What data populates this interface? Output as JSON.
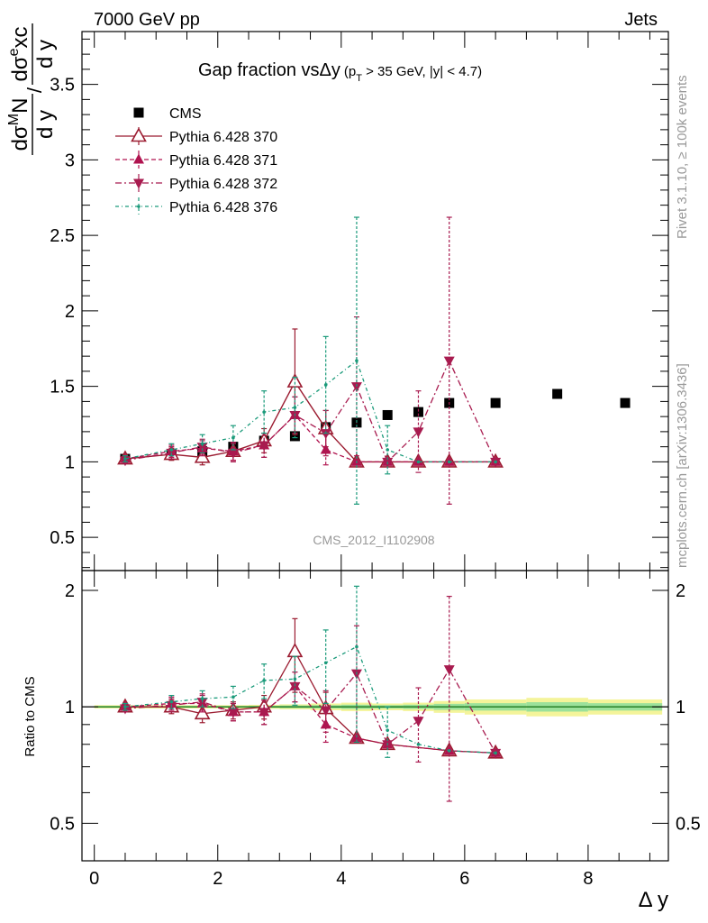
{
  "header": {
    "left": "7000 GeV pp",
    "right": "Jets"
  },
  "side_text": {
    "rivet": "Rivet 3.1.10, ≥ 100k events",
    "mcplots": "mcplots.cern.ch [arXiv:1306.3436]"
  },
  "watermark": "CMS_2012_I1102908",
  "colors": {
    "cms": "#000000",
    "p370": "#9b1b30",
    "p371": "#b0134f",
    "p372": "#a81b4f",
    "p376": "#1a9a7a",
    "band_outer": "#f4f49a",
    "band_inner": "#9be19b",
    "ref_line": "#1a8f1a"
  },
  "chart_data": [
    {
      "type": "scatter",
      "panel": "main",
      "title": "Gap fraction vsΔy",
      "title_cut": "(p_T > 35 GeV, |y| < 4.7)",
      "xlabel": "Δ y",
      "ylabel": "dσ^MN/dy / dσ^excl/dy",
      "xlim": [
        -0.2,
        9.3
      ],
      "ylim": [
        0.28,
        3.85
      ],
      "yticks": [
        0.5,
        1,
        1.5,
        2,
        2.5,
        3,
        3.5
      ],
      "ytick_labels": [
        "0.5",
        "1",
        "1.5",
        "2",
        "2.5",
        "3",
        "3.5"
      ],
      "xticks": [
        0,
        2,
        4,
        6,
        8
      ],
      "legend_placement": "top-left",
      "series": [
        {
          "name": "CMS",
          "style": "data",
          "x": [
            0.5,
            1.25,
            1.75,
            2.25,
            2.75,
            3.25,
            3.75,
            4.25,
            4.75,
            5.25,
            5.75,
            6.5,
            7.5,
            8.6
          ],
          "y": [
            1.02,
            1.05,
            1.07,
            1.1,
            1.14,
            1.17,
            1.23,
            1.26,
            1.31,
            1.33,
            1.39,
            1.39,
            1.45,
            1.39
          ],
          "yerr": [
            0.01,
            0.01,
            0.01,
            0.01,
            0.01,
            0.01,
            0.02,
            0.03,
            0.02,
            0.02,
            0.02,
            0.02,
            0.02,
            0.02
          ]
        },
        {
          "name": "Pythia 6.428 370",
          "style": "solid-open-triangle",
          "x": [
            0.5,
            1.25,
            1.75,
            2.25,
            2.75,
            3.25,
            3.75,
            4.25,
            4.75,
            5.25,
            5.75,
            6.5
          ],
          "y": [
            1.02,
            1.05,
            1.03,
            1.07,
            1.14,
            1.53,
            1.22,
            1.0,
            1.0,
            1.0,
            1.0,
            1.0
          ],
          "yerr": [
            0.02,
            0.04,
            0.05,
            0.06,
            0.08,
            0.35,
            0.12,
            0.0,
            0.0,
            0.0,
            0.0,
            0.0
          ]
        },
        {
          "name": "Pythia 6.428 371",
          "style": "dashed-triangle-up",
          "x": [
            0.5,
            1.25,
            1.75,
            2.25,
            2.75,
            3.25,
            3.75,
            4.25,
            4.75,
            5.25,
            5.75,
            6.5
          ],
          "y": [
            1.02,
            1.07,
            1.09,
            1.07,
            1.11,
            1.31,
            1.08,
            1.0,
            1.0,
            1.0,
            1.0,
            1.0
          ],
          "yerr": [
            0.02,
            0.04,
            0.05,
            0.06,
            0.08,
            0.12,
            0.1,
            0.0,
            0.0,
            0.0,
            0.0,
            0.0
          ]
        },
        {
          "name": "Pythia 6.428 372",
          "style": "dashdot-triangle-down",
          "x": [
            0.5,
            1.25,
            1.75,
            2.25,
            2.75,
            3.25,
            3.75,
            4.25,
            4.75,
            5.25,
            5.75,
            6.5
          ],
          "y": [
            1.01,
            1.06,
            1.1,
            1.06,
            1.11,
            1.31,
            1.19,
            1.5,
            1.0,
            1.2,
            1.67,
            1.0
          ],
          "yerr": [
            0.02,
            0.04,
            0.05,
            0.06,
            0.08,
            0.12,
            0.15,
            0.46,
            0.0,
            0.27,
            0.95,
            0.0
          ]
        },
        {
          "name": "Pythia 6.428 376",
          "style": "dashdot-dot",
          "x": [
            0.5,
            1.25,
            1.75,
            2.25,
            2.75,
            3.25,
            3.75,
            4.25,
            4.75,
            5.25,
            5.75,
            6.5
          ],
          "y": [
            1.02,
            1.08,
            1.12,
            1.16,
            1.33,
            1.36,
            1.51,
            1.67,
            1.08,
            1.0,
            1.0,
            1.0
          ],
          "yerr": [
            0.02,
            0.04,
            0.06,
            0.08,
            0.14,
            0.2,
            0.32,
            0.95,
            0.16,
            0.0,
            0.0,
            0.0
          ]
        }
      ]
    },
    {
      "type": "scatter",
      "panel": "ratio",
      "ylabel": "Ratio to CMS",
      "xlabel": "Δ y",
      "xlim": [
        -0.2,
        9.3
      ],
      "ylim": [
        0.4,
        2.25
      ],
      "yticks": [
        0.5,
        1,
        2
      ],
      "ytick_labels": [
        "0.5",
        "1",
        "2"
      ],
      "xticks": [
        0,
        2,
        4,
        6,
        8
      ],
      "xtick_labels": [
        "0",
        "2",
        "4",
        "6",
        "8"
      ],
      "band": {
        "x_edges": [
          0.0,
          0.75,
          1.5,
          2.0,
          2.5,
          3.0,
          3.5,
          4.0,
          4.5,
          5.0,
          5.5,
          6.0,
          7.0,
          8.0,
          9.2
        ],
        "outer": [
          0.01,
          0.01,
          0.01,
          0.01,
          0.012,
          0.015,
          0.02,
          0.025,
          0.02,
          0.025,
          0.035,
          0.045,
          0.055,
          0.045
        ],
        "inner": [
          0.005,
          0.005,
          0.005,
          0.005,
          0.006,
          0.008,
          0.01,
          0.013,
          0.01,
          0.013,
          0.018,
          0.022,
          0.028,
          0.022
        ]
      },
      "series": [
        {
          "name": "Pythia 6.428 370",
          "x": [
            0.5,
            1.25,
            1.75,
            2.25,
            2.75,
            3.25,
            3.75,
            4.25,
            4.75,
            5.75,
            6.5
          ],
          "y": [
            1.0,
            1.0,
            0.96,
            0.98,
            1.0,
            1.39,
            0.99,
            0.83,
            0.8,
            0.77,
            0.76
          ],
          "yerr": [
            0.02,
            0.04,
            0.05,
            0.05,
            0.07,
            0.3,
            0.1,
            0.0,
            0.0,
            0.0,
            0.0
          ]
        },
        {
          "name": "Pythia 6.428 371",
          "x": [
            0.5,
            1.25,
            1.75,
            2.25,
            2.75,
            3.25,
            3.75,
            4.25,
            4.75,
            5.75,
            6.5
          ],
          "y": [
            1.0,
            1.02,
            1.02,
            0.97,
            0.97,
            1.13,
            0.9,
            0.83,
            0.8,
            0.77,
            0.76
          ],
          "yerr": [
            0.02,
            0.04,
            0.05,
            0.05,
            0.07,
            0.1,
            0.09,
            0.0,
            0.0,
            0.0,
            0.0
          ]
        },
        {
          "name": "Pythia 6.428 372",
          "x": [
            0.5,
            1.25,
            1.75,
            2.25,
            2.75,
            3.25,
            3.75,
            4.25,
            4.75,
            5.25,
            5.75,
            6.5
          ],
          "y": [
            0.99,
            1.01,
            1.03,
            0.97,
            0.97,
            1.13,
            0.98,
            1.22,
            0.8,
            0.92,
            1.25,
            0.76
          ],
          "yerr": [
            0.02,
            0.04,
            0.05,
            0.05,
            0.07,
            0.1,
            0.12,
            0.4,
            0.0,
            0.2,
            0.68,
            0.0
          ]
        },
        {
          "name": "Pythia 6.428 376",
          "x": [
            0.5,
            1.25,
            1.75,
            2.25,
            2.75,
            3.25,
            3.75,
            4.25,
            4.75,
            5.25,
            5.75,
            6.5
          ],
          "y": [
            1.0,
            1.03,
            1.05,
            1.06,
            1.17,
            1.18,
            1.3,
            1.43,
            0.87,
            0.8,
            0.77,
            0.76
          ],
          "yerr": [
            0.02,
            0.04,
            0.05,
            0.07,
            0.12,
            0.17,
            0.28,
            0.62,
            0.13,
            0.0,
            0.0,
            0.0
          ]
        }
      ]
    }
  ]
}
